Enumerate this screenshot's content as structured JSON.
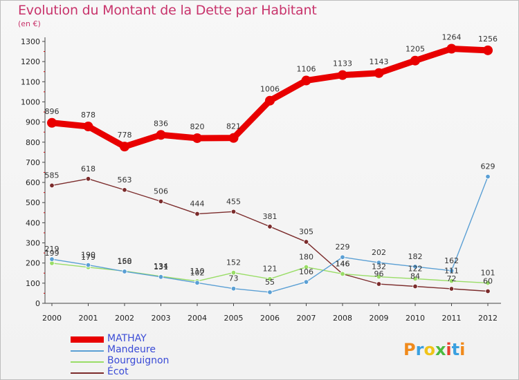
{
  "header": {
    "title": "Evolution du Montant de la Dette par Habitant",
    "unit": "(en €)"
  },
  "logo": {
    "text": "Proxiti",
    "letter_colors": [
      "#f08a1c",
      "#3aa0e0",
      "#f0c419",
      "#4cba3f",
      "#e8402f",
      "#3aa0e0",
      "#f08a1c"
    ]
  },
  "chart_data": {
    "type": "line",
    "title": "Evolution du Montant de la Dette par Habitant",
    "ylabel": "(en €)",
    "xlabel": "",
    "categories": [
      "2000",
      "2001",
      "2002",
      "2003",
      "2004",
      "2005",
      "2006",
      "2007",
      "2008",
      "2009",
      "2010",
      "2011",
      "2012"
    ],
    "y_ticks": [
      "0",
      "100",
      "200",
      "300",
      "400",
      "500",
      "600",
      "700",
      "800",
      "900",
      "1000",
      "1100",
      "1200",
      "1300"
    ],
    "ylim": [
      0,
      1300
    ],
    "grid": false,
    "legend": "bottom-left",
    "series": [
      {
        "name": "MATHAY",
        "color": "#e80000",
        "values": [
          896,
          878,
          778,
          836,
          820,
          821,
          1006,
          1106,
          1133,
          1143,
          1205,
          1264,
          1256
        ]
      },
      {
        "name": "Mandeure",
        "color": "#5a9fd4",
        "values": [
          219,
          190,
          158,
          131,
          102,
          73,
          55,
          106,
          229,
          202,
          182,
          162,
          629
        ]
      },
      {
        "name": "Bourguignon",
        "color": "#99dd66",
        "values": [
          199,
          179,
          160,
          134,
          110,
          152,
          121,
          180,
          146,
          132,
          122,
          111,
          101
        ]
      },
      {
        "name": "Écot",
        "color": "#7b2b2b",
        "values": [
          585,
          618,
          563,
          506,
          444,
          455,
          381,
          305,
          146,
          96,
          84,
          72,
          60
        ]
      }
    ]
  }
}
